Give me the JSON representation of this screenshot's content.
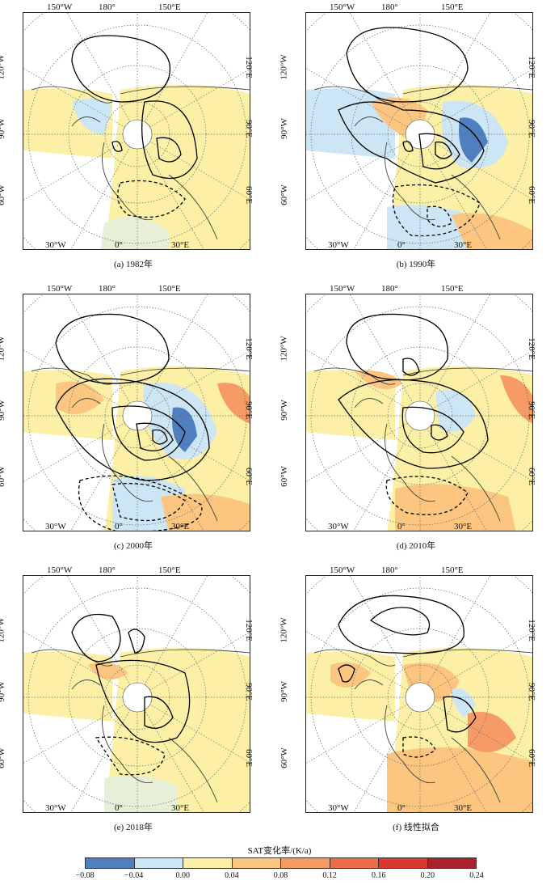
{
  "panels": [
    {
      "caption": "(a) 1982年",
      "variant": 0
    },
    {
      "caption": "(b) 1990年",
      "variant": 1
    },
    {
      "caption": "(c) 2000年",
      "variant": 2
    },
    {
      "caption": "(d) 2010年",
      "variant": 3
    },
    {
      "caption": "(e) 2018年",
      "variant": 4
    },
    {
      "caption": "(f) 线性拟合",
      "variant": 5
    }
  ],
  "axis_labels": {
    "top_left": "150°W",
    "top_center": "180°",
    "top_right": "150°E",
    "left_upper": "120°W",
    "left_middle": "90°W",
    "left_lower": "60°W",
    "right_upper": "120°E",
    "right_middle": "90°E",
    "right_lower": "60°E",
    "bottom_left": "30°W",
    "bottom_center": "0°",
    "bottom_right": "30°E"
  },
  "colorbar": {
    "title": "SAT变化率/(K/a)",
    "ticks": [
      "−0.08",
      "−0.04",
      "0.00",
      "0.04",
      "0.08",
      "0.12",
      "0.16",
      "0.20",
      "0.24"
    ],
    "colors": [
      "#4f7fbf",
      "#cde6f5",
      "#fbf0a5",
      "#fcc680",
      "#f79b66",
      "#ee6b4c",
      "#d8382f",
      "#a9222d"
    ]
  }
}
